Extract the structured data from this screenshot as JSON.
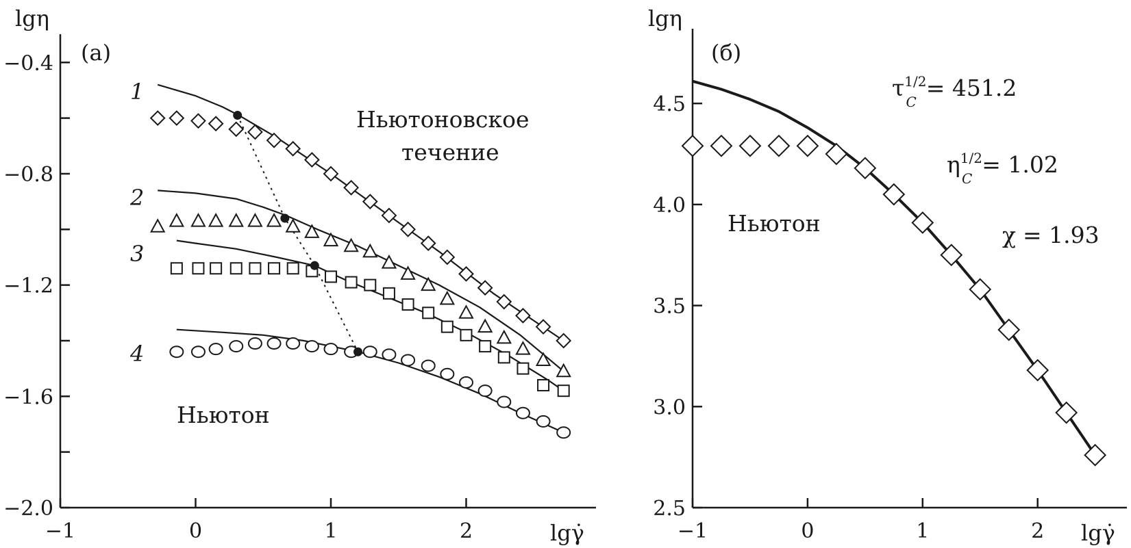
{
  "chart_data": [
    {
      "type": "line",
      "panel_label": "(a)",
      "ylabel": "lgη",
      "xlabel": "lgγ̇",
      "xlim": [
        -1,
        2.8
      ],
      "ylim": [
        -2.0,
        -0.3
      ],
      "xticks": [
        -1,
        0,
        1,
        2
      ],
      "xtick_labels": [
        "−1",
        "0",
        "1",
        "2"
      ],
      "yticks": [
        -2.0,
        -1.8,
        -1.6,
        -1.4,
        -1.2,
        -1.0,
        -0.8,
        -0.6,
        -0.4
      ],
      "ytick_labels": [
        "−2.0",
        "",
        "−1.6",
        "",
        "−1.2",
        "",
        "−0.8",
        "",
        "−0.4"
      ],
      "annotations": [
        "Ньютоновское",
        "течение",
        "Ньютон"
      ],
      "series": [
        {
          "name": "1",
          "marker": "diamond",
          "points_x": [
            -0.28,
            -0.14,
            0.02,
            0.15,
            0.3,
            0.44,
            0.58,
            0.72,
            0.86,
            1.0,
            1.15,
            1.29,
            1.43,
            1.57,
            1.72,
            1.86,
            2.0,
            2.14,
            2.28,
            2.42,
            2.57,
            2.72
          ],
          "points_y": [
            -0.6,
            -0.6,
            -0.61,
            -0.62,
            -0.64,
            -0.65,
            -0.68,
            -0.71,
            -0.75,
            -0.8,
            -0.85,
            -0.9,
            -0.95,
            -1.0,
            -1.05,
            -1.1,
            -1.16,
            -1.21,
            -1.26,
            -1.31,
            -1.35,
            -1.4
          ],
          "curve_x": [
            -0.28,
            0.0,
            0.2,
            0.32,
            0.6,
            1.0,
            1.4,
            1.8,
            2.2,
            2.72
          ],
          "curve_y": [
            -0.48,
            -0.52,
            -0.56,
            -0.59,
            -0.67,
            -0.8,
            -0.94,
            -1.08,
            -1.23,
            -1.4
          ],
          "transition": [
            0.31,
            -0.59
          ]
        },
        {
          "name": "2",
          "marker": "triangle",
          "points_x": [
            -0.28,
            -0.14,
            0.02,
            0.15,
            0.3,
            0.44,
            0.58,
            0.72,
            0.86,
            1.0,
            1.15,
            1.29,
            1.43,
            1.57,
            1.72,
            1.86,
            2.0,
            2.14,
            2.28,
            2.42,
            2.57,
            2.72
          ],
          "points_y": [
            -0.99,
            -0.97,
            -0.97,
            -0.97,
            -0.97,
            -0.97,
            -0.97,
            -0.99,
            -1.01,
            -1.04,
            -1.06,
            -1.08,
            -1.12,
            -1.16,
            -1.2,
            -1.25,
            -1.3,
            -1.35,
            -1.39,
            -1.43,
            -1.47,
            -1.51
          ],
          "curve_x": [
            -0.28,
            0.0,
            0.3,
            0.5,
            0.67,
            0.9,
            1.2,
            1.5,
            1.8,
            2.1,
            2.4,
            2.72
          ],
          "curve_y": [
            -0.86,
            -0.87,
            -0.89,
            -0.92,
            -0.95,
            -1.0,
            -1.06,
            -1.13,
            -1.2,
            -1.28,
            -1.38,
            -1.51
          ],
          "transition": [
            0.66,
            -0.96
          ]
        },
        {
          "name": "3",
          "marker": "square",
          "points_x": [
            -0.14,
            0.02,
            0.15,
            0.3,
            0.44,
            0.58,
            0.72,
            0.86,
            1.0,
            1.15,
            1.29,
            1.43,
            1.57,
            1.72,
            1.86,
            2.0,
            2.14,
            2.28,
            2.42,
            2.57,
            2.72
          ],
          "points_y": [
            -1.14,
            -1.14,
            -1.14,
            -1.14,
            -1.14,
            -1.14,
            -1.14,
            -1.15,
            -1.17,
            -1.19,
            -1.2,
            -1.23,
            -1.27,
            -1.3,
            -1.35,
            -1.38,
            -1.42,
            -1.46,
            -1.5,
            -1.56,
            -1.58
          ],
          "curve_x": [
            -0.14,
            0.0,
            0.3,
            0.6,
            0.88,
            1.1,
            1.4,
            1.7,
            2.0,
            2.3,
            2.6,
            2.72
          ],
          "curve_y": [
            -1.04,
            -1.05,
            -1.07,
            -1.1,
            -1.13,
            -1.18,
            -1.24,
            -1.3,
            -1.37,
            -1.45,
            -1.54,
            -1.58
          ],
          "transition": [
            0.88,
            -1.13
          ]
        },
        {
          "name": "4",
          "marker": "circle",
          "points_x": [
            -0.14,
            0.02,
            0.15,
            0.3,
            0.44,
            0.58,
            0.72,
            0.86,
            1.0,
            1.15,
            1.29,
            1.43,
            1.57,
            1.72,
            1.86,
            2.0,
            2.14,
            2.28,
            2.42,
            2.57,
            2.72
          ],
          "points_y": [
            -1.44,
            -1.44,
            -1.43,
            -1.42,
            -1.41,
            -1.41,
            -1.41,
            -1.42,
            -1.43,
            -1.44,
            -1.44,
            -1.45,
            -1.47,
            -1.49,
            -1.52,
            -1.55,
            -1.58,
            -1.62,
            -1.66,
            -1.69,
            -1.73
          ],
          "curve_x": [
            -0.14,
            0.2,
            0.5,
            0.8,
            1.0,
            1.2,
            1.5,
            1.8,
            2.1,
            2.4,
            2.72
          ],
          "curve_y": [
            -1.36,
            -1.37,
            -1.38,
            -1.4,
            -1.42,
            -1.44,
            -1.48,
            -1.53,
            -1.59,
            -1.66,
            -1.73
          ],
          "transition": [
            1.2,
            -1.44
          ]
        }
      ]
    },
    {
      "type": "line",
      "panel_label": "(б)",
      "ylabel": "lgη",
      "xlabel": "lgγ̇",
      "xlim": [
        -1,
        2.6
      ],
      "ylim": [
        2.5,
        4.85
      ],
      "xticks": [
        -1,
        0,
        1,
        2
      ],
      "xtick_labels": [
        "−1",
        "0",
        "1",
        "2"
      ],
      "yticks": [
        2.5,
        3.0,
        3.5,
        4.0,
        4.5
      ],
      "ytick_labels": [
        "2.5",
        "3.0",
        "3.5",
        "4.0",
        "4.5"
      ],
      "annotations": [
        "Ньютон"
      ],
      "params": [
        {
          "symbol": "τ",
          "sub": "C",
          "sup": "1/2",
          "value": "= 451.2"
        },
        {
          "symbol": "η",
          "sub": "C",
          "sup": "1/2",
          "value": "= 1.02"
        },
        {
          "symbol": "χ",
          "value": "= 1.93"
        }
      ],
      "series": [
        {
          "name": "",
          "marker": "diamond",
          "points_x": [
            -1.0,
            -0.75,
            -0.5,
            -0.25,
            0.0,
            0.25,
            0.5,
            0.75,
            1.0,
            1.25,
            1.5,
            1.75,
            2.0,
            2.25,
            2.5
          ],
          "points_y": [
            4.29,
            4.29,
            4.29,
            4.29,
            4.29,
            4.25,
            4.18,
            4.05,
            3.91,
            3.75,
            3.58,
            3.38,
            3.18,
            2.97,
            2.76
          ],
          "curve_x": [
            -1.0,
            -0.75,
            -0.5,
            -0.25,
            0.0,
            0.25,
            0.5,
            0.75,
            1.0,
            1.25,
            1.5,
            1.75,
            2.0,
            2.25,
            2.5
          ],
          "curve_y": [
            4.61,
            4.57,
            4.52,
            4.46,
            4.38,
            4.29,
            4.18,
            4.05,
            3.91,
            3.75,
            3.58,
            3.38,
            3.18,
            2.97,
            2.76
          ]
        }
      ]
    }
  ]
}
